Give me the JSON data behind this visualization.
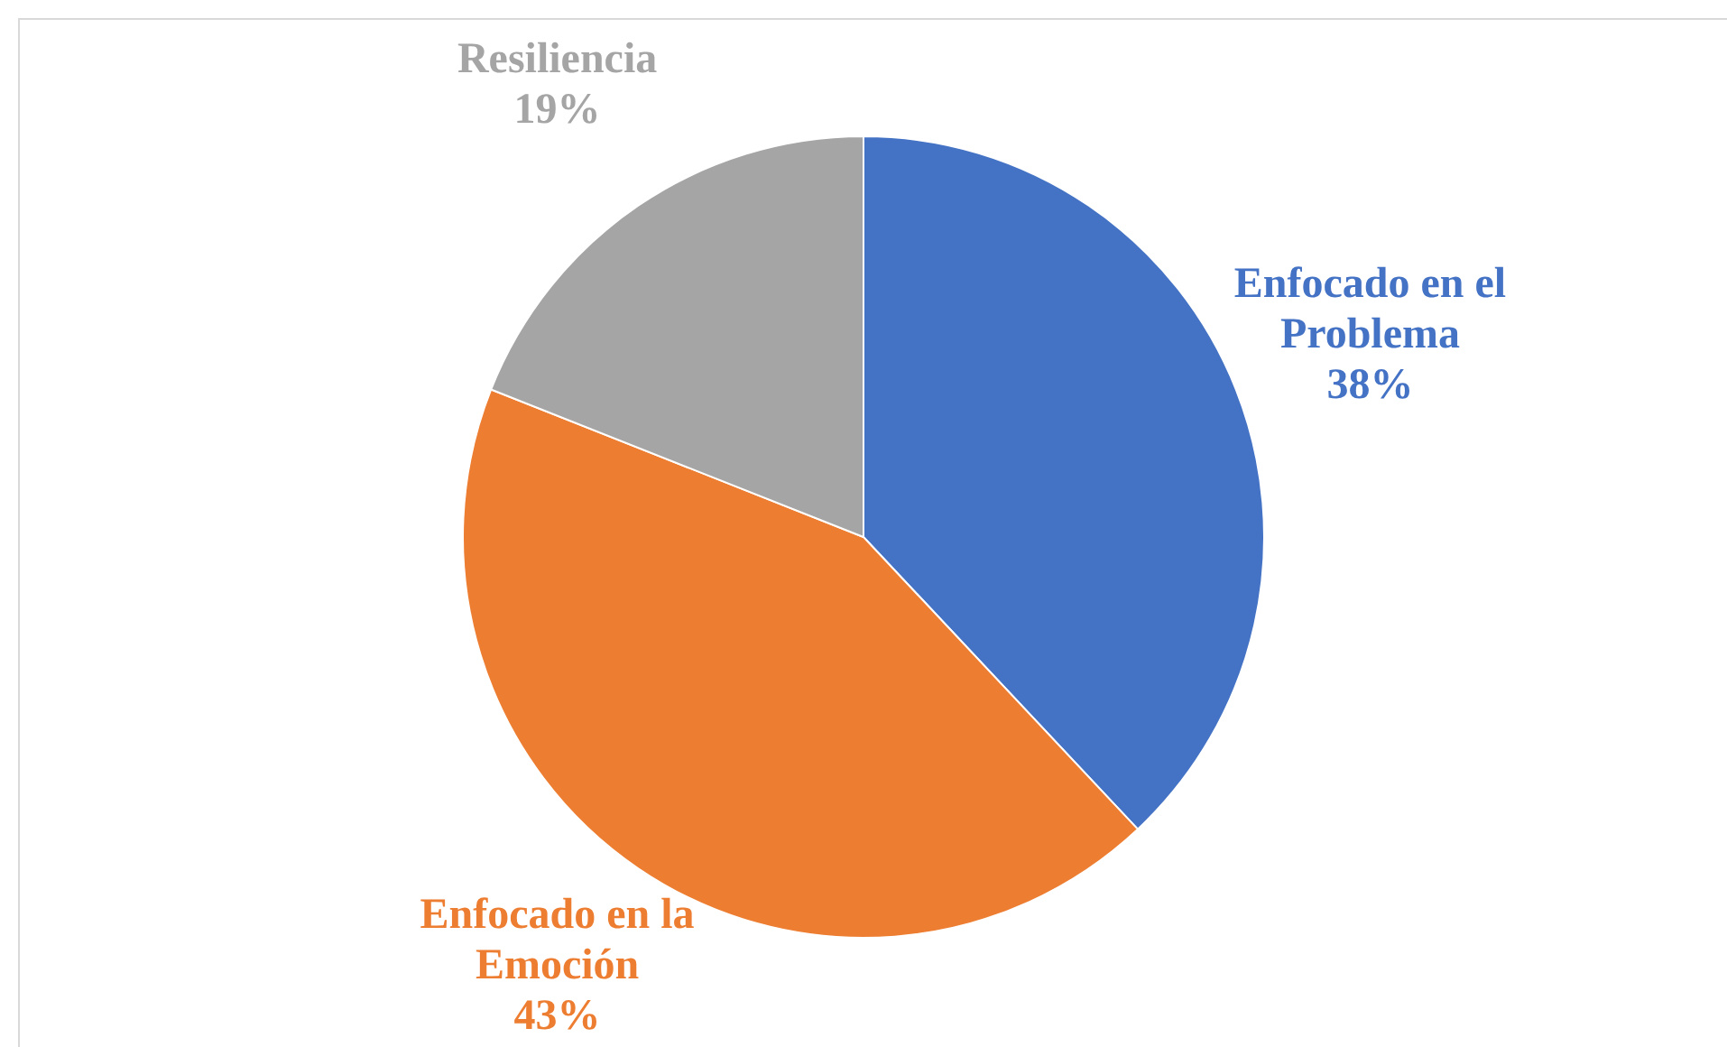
{
  "chart_data": {
    "type": "pie",
    "categories": [
      "Enfocado en el Problema",
      "Enfocado en la Emoción",
      "Resiliencia"
    ],
    "values": [
      38,
      43,
      19
    ],
    "colors": [
      "#4472c4",
      "#ed7d31",
      "#a5a5a5"
    ],
    "value_labels": [
      "38%",
      "43%",
      "19%"
    ],
    "legend": false
  }
}
